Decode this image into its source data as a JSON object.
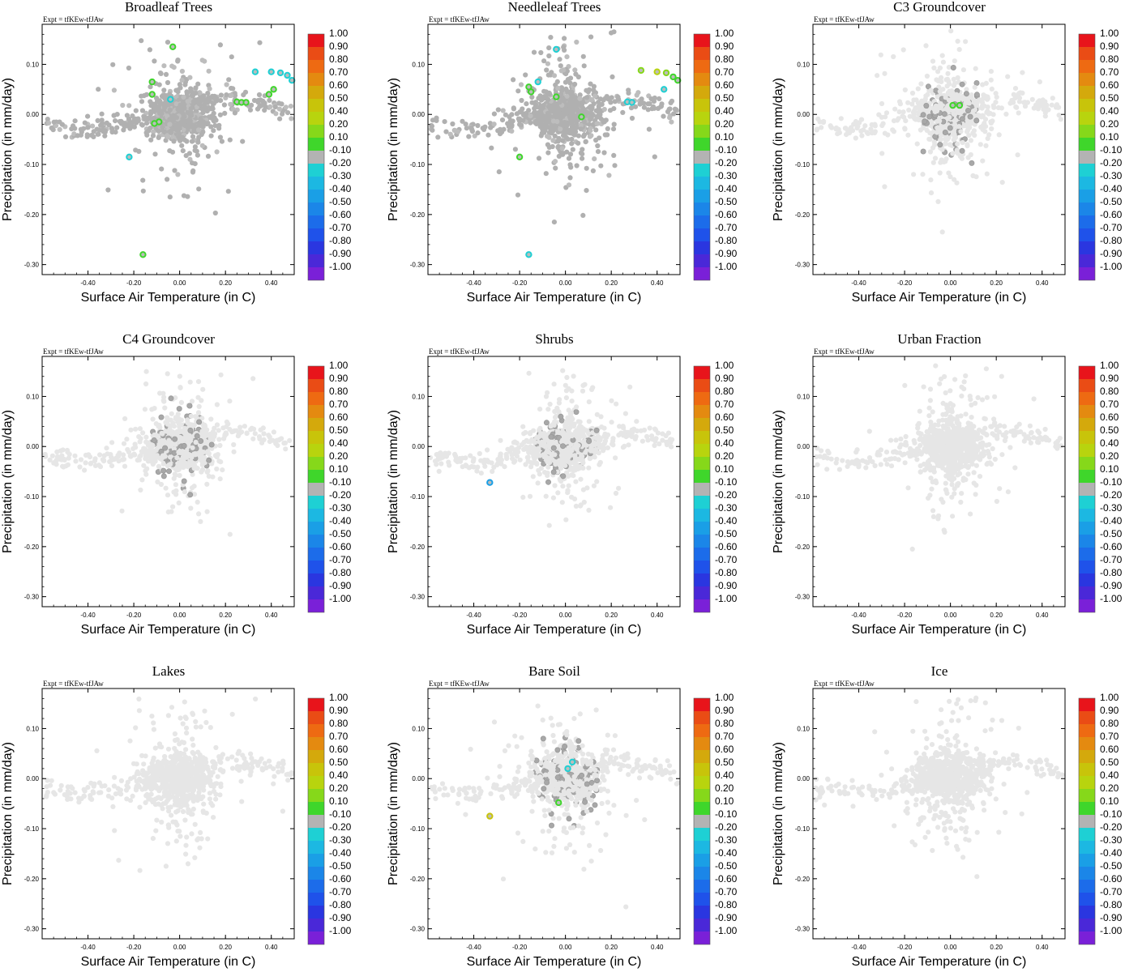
{
  "figure": {
    "expt_label": "Expt = tfKEw-tfJAw"
  },
  "colorbar": {
    "labels": [
      "1.00",
      "0.90",
      "0.80",
      "0.70",
      "0.60",
      "0.50",
      "0.40",
      "0.20",
      "0.10",
      "-0.10",
      "-0.20",
      "-0.30",
      "-0.40",
      "-0.50",
      "-0.60",
      "-0.70",
      "-0.80",
      "-0.90",
      "-1.00"
    ],
    "colors": [
      "#e8141b",
      "#ea4c15",
      "#ee6a12",
      "#e48a10",
      "#d4a90c",
      "#c8c40a",
      "#b8d40e",
      "#86d81a",
      "#3fd62b",
      "#b3b3b3",
      "#1ed0d4",
      "#1cb8e2",
      "#1a9fe6",
      "#1b86e8",
      "#1c6cea",
      "#1f52ea",
      "#2a36e0",
      "#4a28d8",
      "#7a20d8"
    ]
  },
  "chart_data": [
    {
      "type": "scatter",
      "title": "Broadleaf Trees",
      "xlabel": "Surface Air Temperature (in C)",
      "ylabel": "Precipitation (in mm/day)",
      "xlim": [
        -0.6,
        0.5
      ],
      "ylim": [
        -0.32,
        0.18
      ],
      "xticks": [
        -0.4,
        -0.2,
        0.0,
        0.2,
        0.4
      ],
      "xtick_labels": [
        "-0.40",
        "-0.20",
        "0.00",
        "0.20",
        "0.40"
      ],
      "yticks": [
        0.1,
        0.0,
        -0.1,
        -0.2,
        -0.3
      ],
      "ytick_labels": [
        "0.10",
        "0.00",
        "-0.10",
        "-0.20",
        "-0.30"
      ],
      "background_style": "dark",
      "highlights": [
        {
          "x": -0.03,
          "y": 0.135,
          "c": "#3fd62b"
        },
        {
          "x": -0.12,
          "y": 0.065,
          "c": "#3fd62b"
        },
        {
          "x": -0.12,
          "y": 0.04,
          "c": "#3fd62b"
        },
        {
          "x": -0.09,
          "y": -0.015,
          "c": "#3fd62b"
        },
        {
          "x": -0.11,
          "y": -0.018,
          "c": "#3fd62b"
        },
        {
          "x": 0.25,
          "y": 0.025,
          "c": "#3fd62b"
        },
        {
          "x": 0.27,
          "y": 0.024,
          "c": "#3fd62b"
        },
        {
          "x": 0.29,
          "y": 0.024,
          "c": "#3fd62b"
        },
        {
          "x": 0.41,
          "y": 0.05,
          "c": "#3fd62b"
        },
        {
          "x": 0.39,
          "y": 0.04,
          "c": "#3fd62b"
        },
        {
          "x": 0.33,
          "y": 0.085,
          "c": "#1ed0d4"
        },
        {
          "x": 0.4,
          "y": 0.085,
          "c": "#1ed0d4"
        },
        {
          "x": 0.44,
          "y": 0.083,
          "c": "#1ed0d4"
        },
        {
          "x": 0.47,
          "y": 0.078,
          "c": "#1ed0d4"
        },
        {
          "x": 0.49,
          "y": 0.068,
          "c": "#1ed0d4"
        },
        {
          "x": -0.22,
          "y": -0.085,
          "c": "#1ed0d4"
        },
        {
          "x": -0.04,
          "y": 0.03,
          "c": "#1ed0d4"
        },
        {
          "x": -0.16,
          "y": -0.28,
          "c": "#3fd62b"
        }
      ]
    },
    {
      "type": "scatter",
      "title": "Needleleaf Trees",
      "xlabel": "Surface Air Temperature (in C)",
      "ylabel": "Precipitation (in mm/day)",
      "xlim": [
        -0.6,
        0.5
      ],
      "ylim": [
        -0.32,
        0.18
      ],
      "xticks": [
        -0.4,
        -0.2,
        0.0,
        0.2,
        0.4
      ],
      "xtick_labels": [
        "-0.40",
        "-0.20",
        "0.00",
        "0.20",
        "0.40"
      ],
      "yticks": [
        0.1,
        0.0,
        -0.1,
        -0.2,
        -0.3
      ],
      "ytick_labels": [
        "0.10",
        "0.00",
        "-0.10",
        "-0.20",
        "-0.30"
      ],
      "background_style": "dark",
      "highlights": [
        {
          "x": -0.12,
          "y": 0.065,
          "c": "#1ed0d4"
        },
        {
          "x": -0.04,
          "y": 0.13,
          "c": "#1ed0d4"
        },
        {
          "x": -0.16,
          "y": 0.055,
          "c": "#3fd62b"
        },
        {
          "x": -0.15,
          "y": 0.045,
          "c": "#3fd62b"
        },
        {
          "x": -0.04,
          "y": 0.035,
          "c": "#3fd62b"
        },
        {
          "x": 0.07,
          "y": -0.005,
          "c": "#3fd62b"
        },
        {
          "x": -0.2,
          "y": -0.085,
          "c": "#3fd62b"
        },
        {
          "x": 0.33,
          "y": 0.088,
          "c": "#86d81a"
        },
        {
          "x": 0.4,
          "y": 0.085,
          "c": "#b8d40e"
        },
        {
          "x": 0.44,
          "y": 0.083,
          "c": "#86d81a"
        },
        {
          "x": 0.47,
          "y": 0.075,
          "c": "#3fd62b"
        },
        {
          "x": 0.49,
          "y": 0.068,
          "c": "#3fd62b"
        },
        {
          "x": 0.43,
          "y": 0.05,
          "c": "#1ed0d4"
        },
        {
          "x": 0.27,
          "y": 0.025,
          "c": "#1ed0d4"
        },
        {
          "x": 0.29,
          "y": 0.024,
          "c": "#1ed0d4"
        },
        {
          "x": -0.16,
          "y": -0.28,
          "c": "#1ed0d4"
        }
      ]
    },
    {
      "type": "scatter",
      "title": "C3 Groundcover",
      "xlabel": "Surface Air Temperature (in C)",
      "ylabel": "Precipitation (in mm/day)",
      "xlim": [
        -0.6,
        0.5
      ],
      "ylim": [
        -0.32,
        0.18
      ],
      "xticks": [
        -0.4,
        -0.2,
        0.0,
        0.2,
        0.4
      ],
      "xtick_labels": [
        "-0.40",
        "-0.20",
        "0.00",
        "0.20",
        "0.40"
      ],
      "yticks": [
        0.1,
        0.0,
        -0.1,
        -0.2,
        -0.3
      ],
      "ytick_labels": [
        "0.10",
        "0.00",
        "-0.10",
        "-0.20",
        "-0.30"
      ],
      "background_style": "light",
      "highlights": [
        {
          "x": 0.01,
          "y": 0.018,
          "c": "#3fd62b"
        },
        {
          "x": 0.04,
          "y": 0.018,
          "c": "#3fd62b"
        }
      ]
    },
    {
      "type": "scatter",
      "title": "C4 Groundcover",
      "xlabel": "Surface Air Temperature (in C)",
      "ylabel": "Precipitation (in mm/day)",
      "xlim": [
        -0.6,
        0.5
      ],
      "ylim": [
        -0.32,
        0.18
      ],
      "xticks": [
        -0.4,
        -0.2,
        0.0,
        0.2,
        0.4
      ],
      "xtick_labels": [
        "-0.40",
        "-0.20",
        "0.00",
        "0.20",
        "0.40"
      ],
      "yticks": [
        0.1,
        0.0,
        -0.1,
        -0.2,
        -0.3
      ],
      "ytick_labels": [
        "0.10",
        "0.00",
        "-0.10",
        "-0.20",
        "-0.30"
      ],
      "background_style": "light",
      "highlights": []
    },
    {
      "type": "scatter",
      "title": "Shrubs",
      "xlabel": "Surface Air Temperature (in C)",
      "ylabel": "Precipitation (in mm/day)",
      "xlim": [
        -0.6,
        0.5
      ],
      "ylim": [
        -0.32,
        0.18
      ],
      "xticks": [
        -0.4,
        -0.2,
        0.0,
        0.2,
        0.4
      ],
      "xtick_labels": [
        "-0.40",
        "-0.20",
        "0.00",
        "0.20",
        "0.40"
      ],
      "yticks": [
        0.1,
        0.0,
        -0.1,
        -0.2,
        -0.3
      ],
      "ytick_labels": [
        "0.10",
        "0.00",
        "-0.10",
        "-0.20",
        "-0.30"
      ],
      "background_style": "light",
      "highlights": [
        {
          "x": -0.33,
          "y": -0.072,
          "c": "#1a9fe6"
        }
      ]
    },
    {
      "type": "scatter",
      "title": "Urban Fraction",
      "xlabel": "Surface Air Temperature (in C)",
      "ylabel": "Precipitation (in mm/day)",
      "xlim": [
        -0.6,
        0.5
      ],
      "ylim": [
        -0.32,
        0.18
      ],
      "xticks": [
        -0.4,
        -0.2,
        0.0,
        0.2,
        0.4
      ],
      "xtick_labels": [
        "-0.40",
        "-0.20",
        "0.00",
        "0.20",
        "0.40"
      ],
      "yticks": [
        0.1,
        0.0,
        -0.1,
        -0.2,
        -0.3
      ],
      "ytick_labels": [
        "0.10",
        "0.00",
        "-0.10",
        "-0.20",
        "-0.30"
      ],
      "background_style": "light",
      "highlights": []
    },
    {
      "type": "scatter",
      "title": "Lakes",
      "xlabel": "Surface Air Temperature (in C)",
      "ylabel": "Precipitation (in mm/day)",
      "xlim": [
        -0.6,
        0.5
      ],
      "ylim": [
        -0.32,
        0.18
      ],
      "xticks": [
        -0.4,
        -0.2,
        0.0,
        0.2,
        0.4
      ],
      "xtick_labels": [
        "-0.40",
        "-0.20",
        "0.00",
        "0.20",
        "0.40"
      ],
      "yticks": [
        0.1,
        0.0,
        -0.1,
        -0.2,
        -0.3
      ],
      "ytick_labels": [
        "0.10",
        "0.00",
        "-0.10",
        "-0.20",
        "-0.30"
      ],
      "background_style": "light",
      "highlights": []
    },
    {
      "type": "scatter",
      "title": "Bare Soil",
      "xlabel": "Surface Air Temperature (in C)",
      "ylabel": "Precipitation (in mm/day)",
      "xlim": [
        -0.6,
        0.5
      ],
      "ylim": [
        -0.32,
        0.18
      ],
      "xticks": [
        -0.4,
        -0.2,
        0.0,
        0.2,
        0.4
      ],
      "xtick_labels": [
        "-0.40",
        "-0.20",
        "0.00",
        "0.20",
        "0.40"
      ],
      "yticks": [
        0.1,
        0.0,
        -0.1,
        -0.2,
        -0.3
      ],
      "ytick_labels": [
        "0.10",
        "0.00",
        "-0.10",
        "-0.20",
        "-0.30"
      ],
      "background_style": "light",
      "highlights": [
        {
          "x": 0.03,
          "y": 0.033,
          "c": "#1ed0d4"
        },
        {
          "x": 0.01,
          "y": 0.02,
          "c": "#1ed0d4"
        },
        {
          "x": -0.03,
          "y": -0.048,
          "c": "#3fd62b"
        },
        {
          "x": -0.33,
          "y": -0.075,
          "c": "#c8c40a"
        }
      ]
    },
    {
      "type": "scatter",
      "title": "Ice",
      "xlabel": "Surface Air Temperature (in C)",
      "ylabel": "Precipitation (in mm/day)",
      "xlim": [
        -0.6,
        0.5
      ],
      "ylim": [
        -0.32,
        0.18
      ],
      "xticks": [
        -0.4,
        -0.2,
        0.0,
        0.2,
        0.4
      ],
      "xtick_labels": [
        "-0.40",
        "-0.20",
        "0.00",
        "0.20",
        "0.40"
      ],
      "yticks": [
        0.1,
        0.0,
        -0.1,
        -0.2,
        -0.3
      ],
      "ytick_labels": [
        "0.10",
        "0.00",
        "-0.10",
        "-0.20",
        "-0.30"
      ],
      "background_style": "light",
      "highlights": []
    }
  ]
}
